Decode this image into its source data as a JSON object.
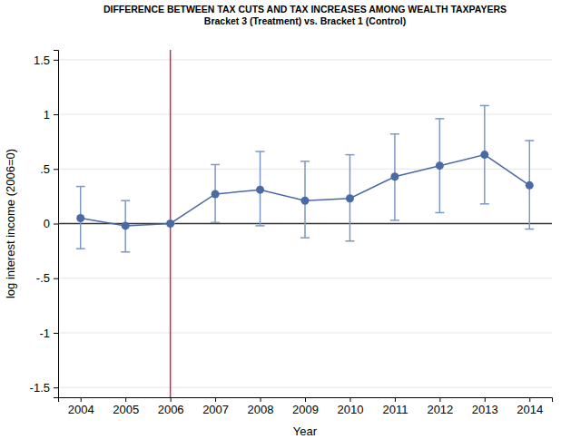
{
  "chart_data": {
    "type": "line",
    "title": "DIFFERENCE BETWEEN TAX CUTS AND TAX INCREASES AMONG WEALTH TAXPAYERS",
    "subtitle": "Bracket 3 (Treatment) vs. Bracket 1 (Control)",
    "x_label": "Year",
    "y_label": "log interest income (2006=0)",
    "x": [
      2004,
      2005,
      2006,
      2007,
      2008,
      2009,
      2010,
      2011,
      2012,
      2013,
      2014
    ],
    "series": [
      {
        "color": "#4a6aa5",
        "marker": "circle",
        "line_style": "solid",
        "values": [
          0.05,
          -0.02,
          0,
          0.27,
          0.31,
          0.21,
          0.23,
          0.43,
          0.53,
          0.63,
          0.35
        ],
        "ci_low": [
          -0.23,
          -0.26,
          0,
          0.01,
          -0.02,
          -0.13,
          -0.16,
          0.03,
          0.1,
          0.18,
          -0.05
        ],
        "ci_high": [
          0.34,
          0.21,
          0,
          0.54,
          0.66,
          0.57,
          0.63,
          0.82,
          0.96,
          1.08,
          0.76
        ]
      }
    ],
    "xlim": [
      2003.5,
      2014.5
    ],
    "xticks": [
      2004,
      2005,
      2006,
      2007,
      2008,
      2009,
      2010,
      2011,
      2012,
      2013,
      2014
    ],
    "ylim": [
      -1.59,
      1.59
    ],
    "yticks": [
      -1.5,
      -1,
      {
        "value": -0.5,
        "label": "-.5"
      },
      0,
      {
        "value": 0.5,
        "label": ".5"
      },
      1,
      1.5
    ],
    "vline": 2006,
    "hline": 0,
    "grid": true
  }
}
